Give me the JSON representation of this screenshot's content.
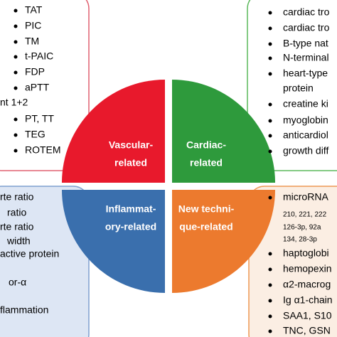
{
  "quadrants": [
    {
      "label_lines": [
        "Vascular-",
        "related"
      ]
    },
    {
      "label_lines": [
        "Cardiac-",
        "related"
      ]
    },
    {
      "label_lines": [
        "Inflammat-",
        "ory-related"
      ]
    },
    {
      "label_lines": [
        "New techni-",
        "que-related"
      ]
    }
  ],
  "boxes": [
    {
      "items": [
        "TAT",
        "PIC",
        "TM",
        "t-PAIC",
        "FDP",
        "aPTT",
        "nt 1+2",
        "PT, TT",
        "TEG",
        "ROTEM"
      ]
    },
    {
      "items": [
        "cardiac tro",
        "cardiac tro",
        "B-type nat",
        "N-terminal",
        "heart-type",
        "protein",
        "creatine ki",
        "myoglobin",
        "anticardiol",
        "growth diff"
      ]
    },
    {
      "items": [
        "rte ratio",
        "ratio",
        "rte ratio",
        "width",
        "active protein",
        "or-α",
        "flammation"
      ]
    },
    {
      "items": [
        "microRNA",
        "210, 221, 222",
        "126-3p, 92a",
        "134, 28-3p",
        "haptoglobi",
        "hemopexin",
        "α2-macrog",
        "Ig α1-chain",
        "SAA1, S10",
        "TNC, GSN"
      ]
    }
  ]
}
